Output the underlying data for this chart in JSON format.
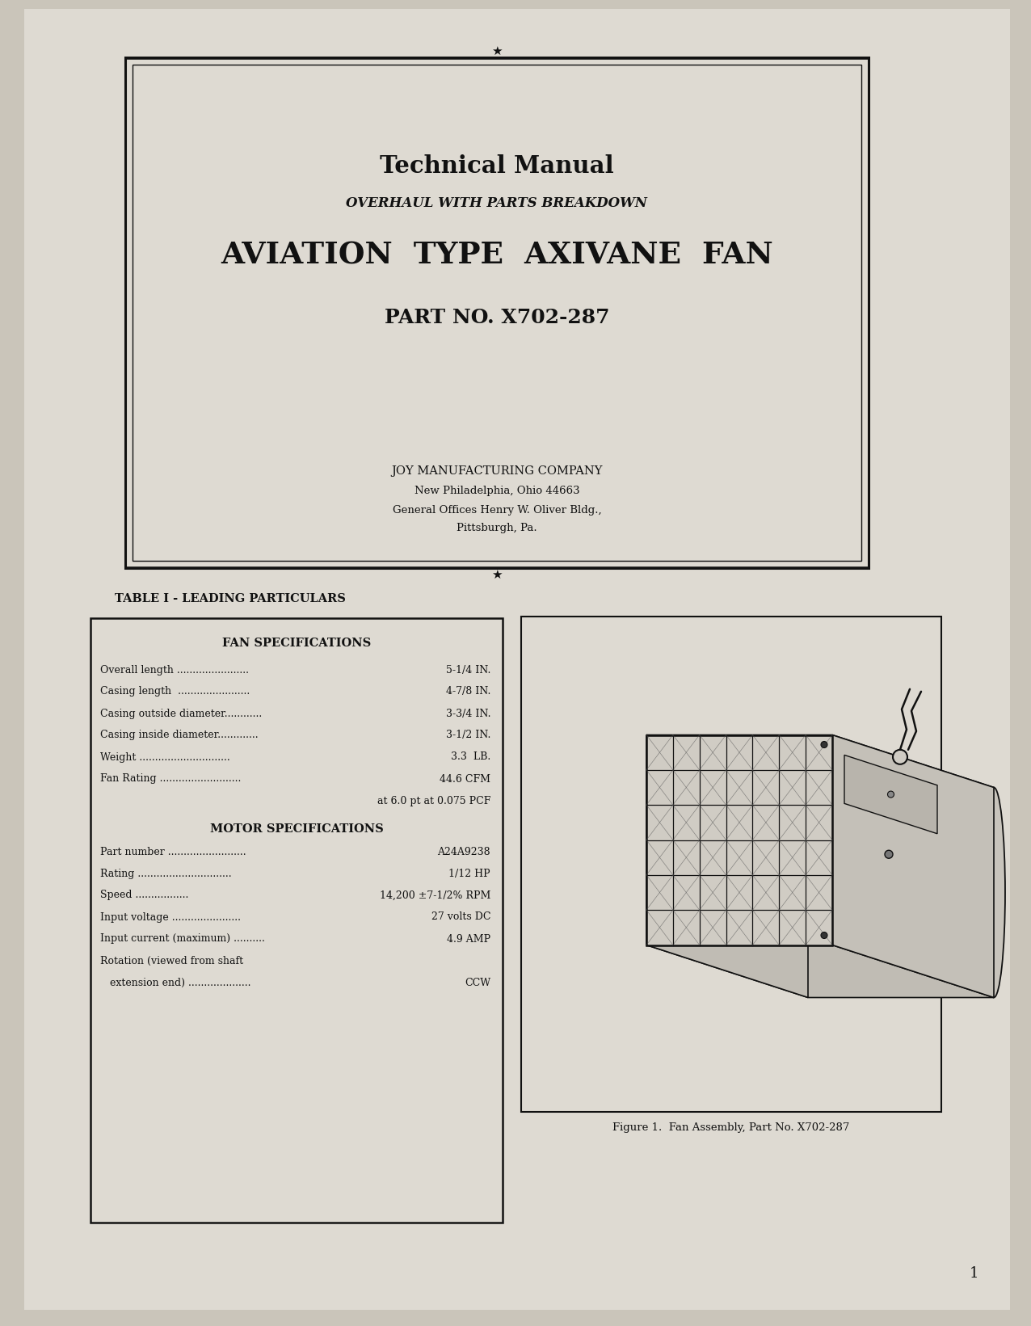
{
  "bg_color": "#cac5ba",
  "paper_color": "#dedad2",
  "ink_color": "#111111",
  "title1": "Technical Manual",
  "title2": "OVERHAUL WITH PARTS BREAKDOWN",
  "title3": "AVIATION  TYPE  AXIVANE  FAN",
  "title4": "PART NO. X702-287",
  "company_name": "JOY MANUFACTURING COMPANY",
  "company_addr1": "New Philadelphia, Ohio 44663",
  "company_addr2": "General Offices Henry W. Oliver Bldg.,",
  "company_addr3": "Pittsburgh, Pa.",
  "table_title": "TABLE I - LEADING PARTICULARS",
  "fan_spec_header": "FAN SPECIFICATIONS",
  "motor_spec_header": "MOTOR SPECIFICATIONS",
  "fan_specs": [
    {
      "label": "Overall length",
      "dots": " .......................",
      "value": "5-1/4 IN."
    },
    {
      "label": "Casing length",
      "dots": "  .......................",
      "value": "4-7/8 IN."
    },
    {
      "label": "Casing outside diameter",
      "dots": "............",
      "value": "3-3/4 IN."
    },
    {
      "label": "Casing inside diameter",
      "dots": ".............",
      "value": "3-1/2 IN."
    },
    {
      "label": "Weight",
      "dots": " .............................",
      "value": "3.3  LB."
    },
    {
      "label": "Fan Rating",
      "dots": " ..........................",
      "value": "44.6 CFM"
    },
    {
      "label": "",
      "dots": "",
      "value": "at 6.0 pt at 0.075 PCF"
    }
  ],
  "motor_specs": [
    {
      "label": "Part number",
      "dots": " .........................",
      "value": "A24A9238"
    },
    {
      "label": "Rating",
      "dots": " ..............................",
      "value": "1/12 HP"
    },
    {
      "label": "Speed",
      "dots": " .................",
      "value": "14,200 ±7-1/2% RPM"
    },
    {
      "label": "Input voltage",
      "dots": " ......................",
      "value": "27 volts DC"
    },
    {
      "label": "Input current (maximum)",
      "dots": " ..........",
      "value": "4.9 AMP"
    },
    {
      "label": "Rotation (viewed from shaft",
      "dots": "",
      "value": ""
    },
    {
      "label": "   extension end)",
      "dots": " ....................",
      "value": "CCW"
    }
  ],
  "figure_caption": "Figure 1.  Fan Assembly, Part No. X702-287",
  "page_number": "1"
}
